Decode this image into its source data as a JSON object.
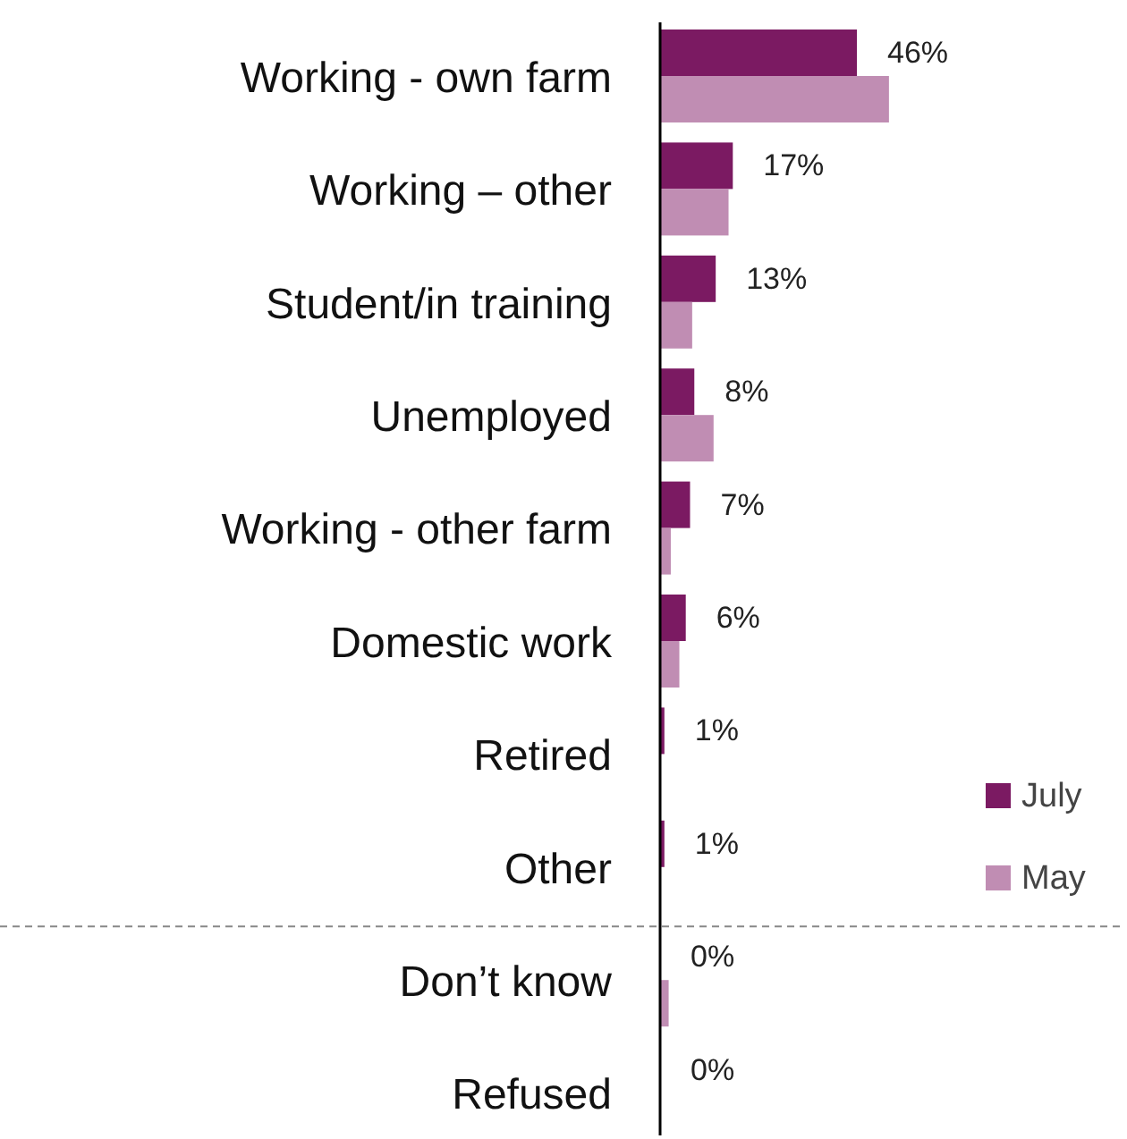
{
  "chart_data": {
    "type": "bar",
    "orientation": "horizontal",
    "categories": [
      "Working - own farm",
      "Working – other",
      "Student/in training",
      "Unemployed",
      "Working - other farm",
      "Domestic work",
      "Retired",
      "Other",
      "Don’t know",
      "Refused"
    ],
    "series": [
      {
        "name": "July",
        "color": "#7b1a62",
        "values": [
          46,
          17,
          13,
          8,
          7,
          6,
          1,
          1,
          0,
          0
        ],
        "value_labels": [
          "46%",
          "17%",
          "13%",
          "8%",
          "7%",
          "6%",
          "1%",
          "1%",
          "0%",
          "0%"
        ]
      },
      {
        "name": "May",
        "color": "#c08db3",
        "values": [
          53.5,
          16,
          7.5,
          12.5,
          2.5,
          4.5,
          0,
          0,
          2,
          0
        ]
      }
    ],
    "legend": "right"
  }
}
